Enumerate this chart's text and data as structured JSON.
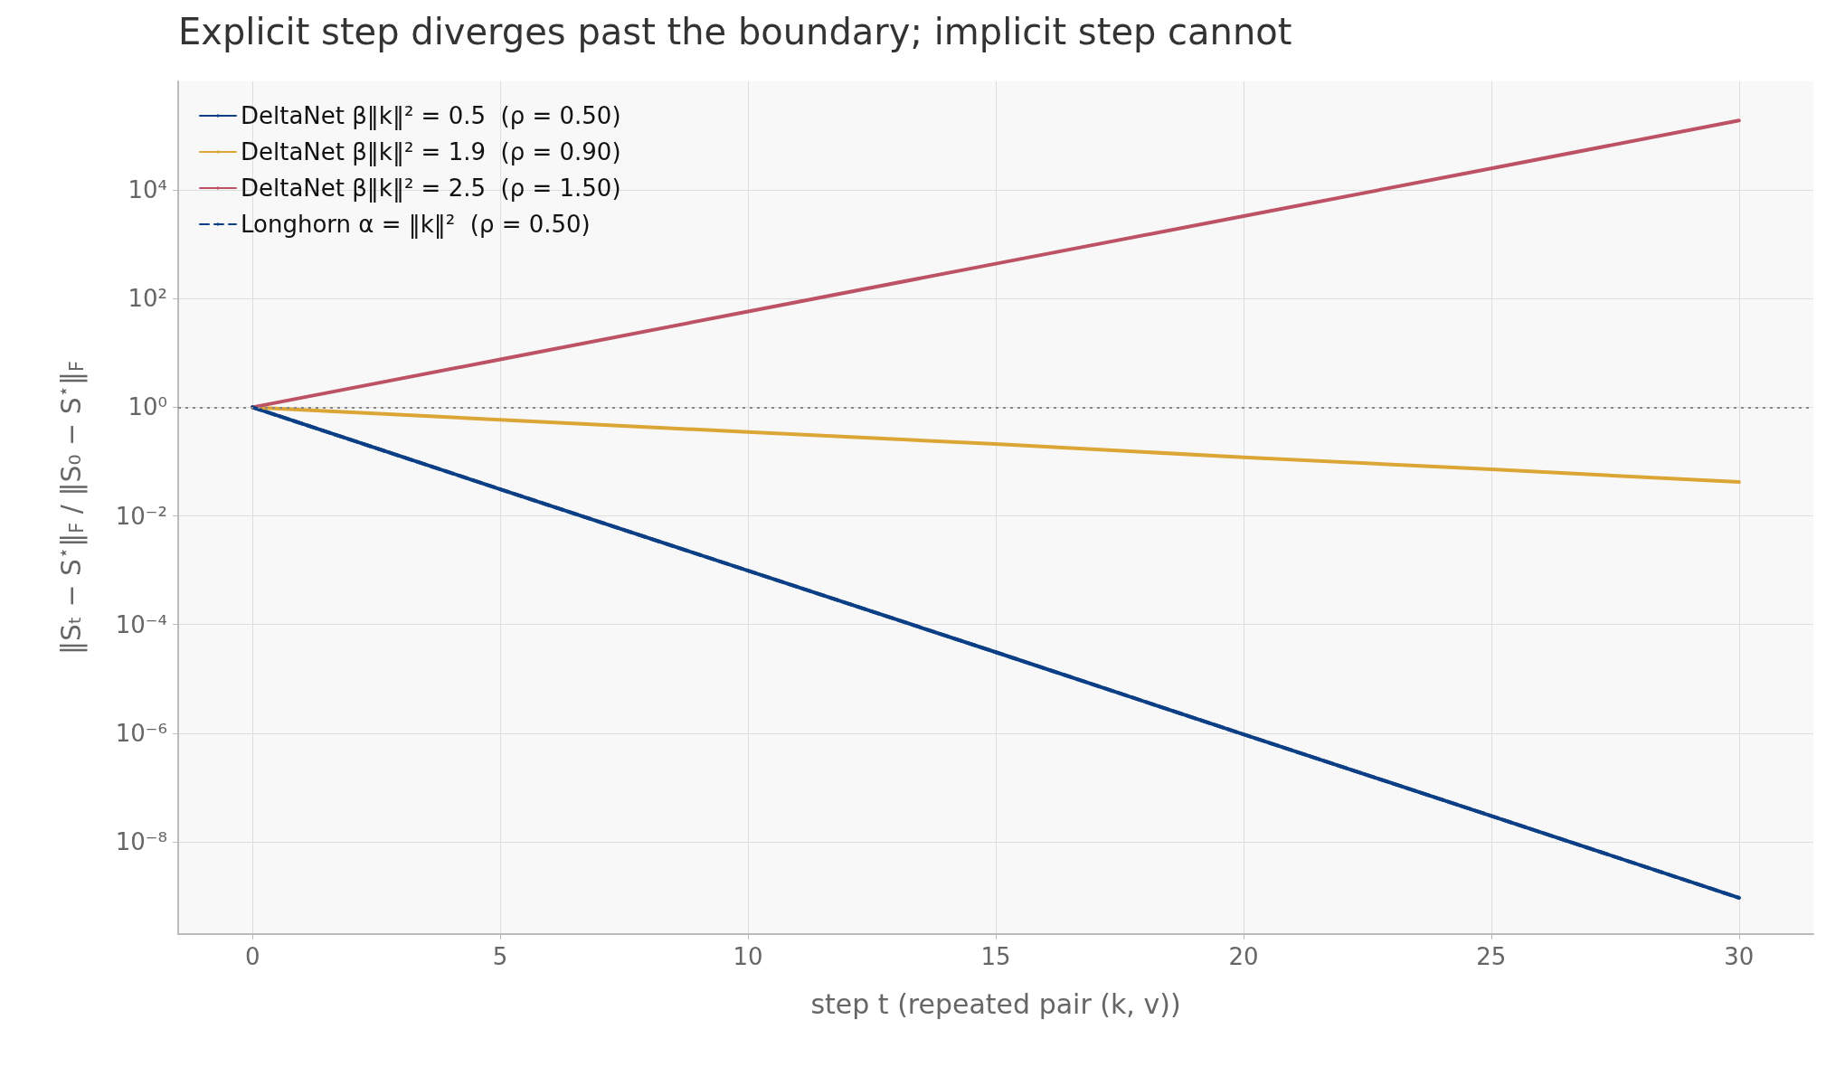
{
  "chart_data": {
    "type": "line",
    "title": "Explicit step diverges past the boundary; implicit step cannot",
    "xlabel": "step t (repeated pair (k, v))",
    "ylabel": "‖Sₜ − S$^{⋆}$‖$_{F}$ / ‖S₀ − S$^{⋆}$‖$_{F}$",
    "x": [
      0,
      5,
      10,
      15,
      20,
      25,
      30
    ],
    "series": [
      {
        "name": "DeltaNet β‖k‖² = 0.5  (ρ = 0.50)",
        "color": "#0c3f85",
        "values": [
          1,
          0.031,
          0.00098,
          3.1e-05,
          9.5e-07,
          3e-08,
          9.3e-10
        ]
      },
      {
        "name": "DeltaNet β‖k‖² = 1.9  (ρ = 0.90)",
        "color": "#dca636",
        "values": [
          1,
          0.59,
          0.35,
          0.21,
          0.12,
          0.072,
          0.042
        ]
      },
      {
        "name": "DeltaNet β‖k‖² = 2.5  (ρ = 1.50)",
        "color": "#bd5265",
        "values": [
          1,
          7.6,
          58,
          440,
          3300,
          25000,
          190000
        ]
      },
      {
        "name": "Longhorn α = ‖k‖²  (ρ = 0.50)",
        "color": "#0c3f85",
        "line_style": "dashed",
        "values": [
          1,
          0.031,
          0.00098,
          3.1e-05,
          9.5e-07,
          3e-08,
          9.3e-10
        ]
      }
    ],
    "log": "y",
    "xlim": [
      -1.5,
      31.5
    ],
    "xticks": [
      0,
      5,
      10,
      15,
      20,
      25,
      30
    ],
    "ylim": [
      2e-10,
      1000000
    ],
    "yticks": [
      {
        "value": 1e-08,
        "label": "10⁻⁸"
      },
      {
        "value": 1e-06,
        "label": "10⁻⁶"
      },
      {
        "value": 0.0001,
        "label": "10⁻⁴"
      },
      {
        "value": 0.01,
        "label": "10⁻²"
      },
      {
        "value": 1,
        "label": "10⁰"
      },
      {
        "value": 100,
        "label": "10²"
      },
      {
        "value": 10000,
        "label": "10⁴"
      }
    ],
    "ref_lines": [
      {
        "axis": "y",
        "value": 1,
        "color": "#888888",
        "line_style": "dotted"
      }
    ],
    "grid": true,
    "legend": "top left",
    "marker": "none",
    "line_style": "solid"
  }
}
